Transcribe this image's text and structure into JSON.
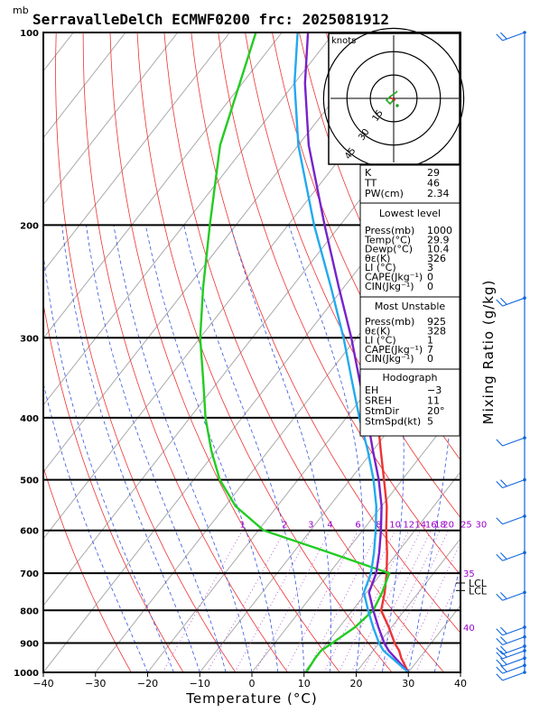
{
  "title": "SerravalleDelCh ECMWF0200 frc: 2025081912",
  "pressure_unit": "mb",
  "xlabel": "Temperature (°C)",
  "right_label": "Mixing Ratio (g/kg)",
  "chart_data": {
    "type": "line",
    "xlim": [
      -40,
      40
    ],
    "xticks": [
      -40,
      -30,
      -20,
      -10,
      0,
      10,
      20,
      30,
      40
    ],
    "pressure_levels": [
      100,
      200,
      300,
      400,
      500,
      600,
      700,
      800,
      900,
      1000
    ],
    "y_scale": "log-pressure",
    "series": [
      {
        "key": "temperature",
        "color": "#ee3333",
        "points": [
          [
            1000,
            30.0
          ],
          [
            950,
            26.5
          ],
          [
            925,
            25.0
          ],
          [
            900,
            23.0
          ],
          [
            850,
            19.5
          ],
          [
            800,
            15.5
          ],
          [
            750,
            13.5
          ],
          [
            700,
            11.0
          ],
          [
            650,
            8.0
          ],
          [
            600,
            4.5
          ],
          [
            550,
            1.0
          ],
          [
            500,
            -3.5
          ],
          [
            450,
            -8.5
          ],
          [
            400,
            -14.0
          ],
          [
            350,
            -20.0
          ],
          [
            300,
            -27.0
          ],
          [
            270,
            -32.0
          ],
          [
            250,
            -36.0
          ],
          [
            200,
            -37.0
          ],
          [
            150,
            -38.0
          ],
          [
            100,
            -40.0
          ]
        ]
      },
      {
        "key": "dewpoint",
        "color": "#22cc22",
        "points": [
          [
            1000,
            10.4
          ],
          [
            950,
            10.0
          ],
          [
            925,
            10.0
          ],
          [
            900,
            11.0
          ],
          [
            850,
            13.0
          ],
          [
            800,
            14.0
          ],
          [
            750,
            13.0
          ],
          [
            700,
            11.5
          ],
          [
            650,
            -3.0
          ],
          [
            600,
            -19.0
          ],
          [
            550,
            -28.0
          ],
          [
            500,
            -35.0
          ],
          [
            450,
            -41.0
          ],
          [
            400,
            -47.0
          ],
          [
            350,
            -53.0
          ],
          [
            300,
            -60.0
          ],
          [
            250,
            -67.0
          ],
          [
            200,
            -75.0
          ],
          [
            150,
            -85.0
          ],
          [
            100,
            -95.0
          ]
        ]
      },
      {
        "key": "parcel_virtual",
        "color": "#7722cc",
        "points": [
          [
            1000,
            30.0
          ],
          [
            925,
            23.0
          ],
          [
            900,
            21.0
          ],
          [
            850,
            17.5
          ],
          [
            800,
            14.0
          ],
          [
            750,
            10.5
          ],
          [
            700,
            9.0
          ],
          [
            650,
            6.5
          ],
          [
            600,
            3.5
          ],
          [
            550,
            0.0
          ],
          [
            500,
            -4.5
          ],
          [
            450,
            -10.0
          ],
          [
            400,
            -16.0
          ],
          [
            350,
            -23.0
          ],
          [
            300,
            -31.0
          ],
          [
            250,
            -41.0
          ],
          [
            200,
            -53.0
          ],
          [
            150,
            -68.0
          ],
          [
            120,
            -78.0
          ],
          [
            100,
            -85.0
          ]
        ]
      },
      {
        "key": "parcel",
        "color": "#22aaee",
        "points": [
          [
            1000,
            30.0
          ],
          [
            925,
            22.0
          ],
          [
            900,
            20.0
          ],
          [
            850,
            16.5
          ],
          [
            800,
            13.0
          ],
          [
            750,
            9.5
          ],
          [
            700,
            8.0
          ],
          [
            650,
            5.5
          ],
          [
            600,
            2.5
          ],
          [
            550,
            -1.0
          ],
          [
            500,
            -5.5
          ],
          [
            450,
            -11.0
          ],
          [
            400,
            -17.5
          ],
          [
            350,
            -24.5
          ],
          [
            300,
            -32.5
          ],
          [
            250,
            -42.5
          ],
          [
            200,
            -55.0
          ],
          [
            150,
            -70.0
          ],
          [
            120,
            -80.0
          ],
          [
            100,
            -87.0
          ]
        ]
      }
    ],
    "mixing_ratio_labels": [
      "1",
      "2",
      "3",
      "4",
      "6",
      "8",
      "10",
      "12",
      "14",
      "16",
      "18",
      "20",
      "25",
      "30"
    ],
    "side_labels": [
      {
        "text": "35",
        "pressure": 700
      },
      {
        "text": "40",
        "pressure": 850
      }
    ],
    "level_labels": [
      {
        "text": "LCL",
        "pressure": 725
      },
      {
        "text": "LCL",
        "pressure": 745
      }
    ],
    "hodograph": {
      "units": "knots",
      "ring_labels": [
        "15",
        "30",
        "45"
      ],
      "trace": [
        [
          0,
          0
        ],
        [
          -1,
          2
        ],
        [
          -2,
          3
        ],
        [
          -4,
          1
        ],
        [
          -2,
          -1
        ],
        [
          1,
          -3
        ],
        [
          2,
          -4
        ]
      ]
    },
    "wind_barbs": [
      {
        "pressure": 100,
        "flag": "10"
      },
      {
        "pressure": 260,
        "flag": "10"
      },
      {
        "pressure": 430,
        "flag": "5"
      },
      {
        "pressure": 500,
        "flag": "10"
      },
      {
        "pressure": 570,
        "flag": "5"
      },
      {
        "pressure": 650,
        "flag": "10"
      },
      {
        "pressure": 750,
        "flag": "10"
      },
      {
        "pressure": 850,
        "flag": "10"
      },
      {
        "pressure": 880,
        "flag": "10"
      },
      {
        "pressure": 910,
        "flag": "10"
      },
      {
        "pressure": 925,
        "flag": "10"
      },
      {
        "pressure": 950,
        "flag": "10"
      },
      {
        "pressure": 975,
        "flag": "10"
      },
      {
        "pressure": 1000,
        "flag": "5"
      }
    ]
  },
  "indices": {
    "rows": [
      {
        "label": "K",
        "value": "29"
      },
      {
        "label": "TT",
        "value": "46"
      },
      {
        "label": "PW(cm)",
        "value": "2.34"
      }
    ]
  },
  "lowest_level": {
    "heading": "Lowest level",
    "rows": [
      {
        "label": "Press(mb)",
        "value": "1000"
      },
      {
        "label": "Temp(°C)",
        "value": "29.9"
      },
      {
        "label": "Dewp(°C)",
        "value": "10.4"
      },
      {
        "label": "θε(K)",
        "value": "326"
      },
      {
        "label": "LI (°C)",
        "value": "3"
      },
      {
        "label": "CAPE(Jkg⁻¹)",
        "value": "0"
      },
      {
        "label": "CIN(Jkg⁻¹)",
        "value": "0"
      }
    ]
  },
  "most_unstable": {
    "heading": "Most Unstable",
    "rows": [
      {
        "label": "Press(mb)",
        "value": "925"
      },
      {
        "label": "θε(K)",
        "value": "328"
      },
      {
        "label": "LI (°C)",
        "value": "1"
      },
      {
        "label": "CAPE(Jkg⁻¹)",
        "value": "7"
      },
      {
        "label": "CIN(Jkg⁻¹)",
        "value": "0"
      }
    ]
  },
  "hodograph_panel": {
    "heading": "Hodograph",
    "rows": [
      {
        "label": "EH",
        "value": "−3"
      },
      {
        "label": "SREH",
        "value": "11"
      },
      {
        "label": "StmDir",
        "value": "20°"
      },
      {
        "label": "StmSpd(kt)",
        "value": "5"
      }
    ]
  }
}
